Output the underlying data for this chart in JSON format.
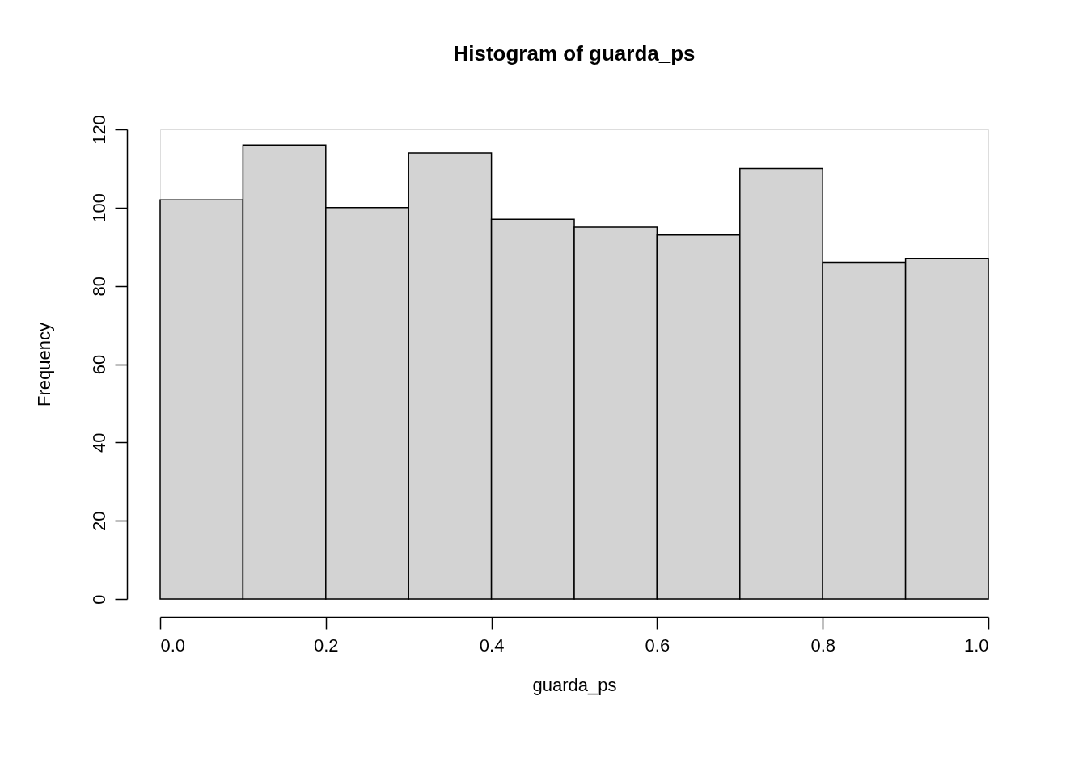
{
  "chart_data": {
    "type": "histogram",
    "title": "Histogram of guarda_ps",
    "xlabel": "guarda_ps",
    "ylabel": "Frequency",
    "bins": [
      0.0,
      0.1,
      0.2,
      0.3,
      0.4,
      0.5,
      0.6,
      0.7,
      0.8,
      0.9,
      1.0
    ],
    "values": [
      102,
      116,
      100,
      114,
      97,
      95,
      93,
      110,
      86,
      87
    ],
    "color": "#d3d3d3",
    "xlim": [
      0,
      1
    ],
    "ylim": [
      0,
      120
    ],
    "xticks": [
      {
        "value": 0,
        "label": "0.0"
      },
      0.2,
      0.4,
      0.6,
      0.8,
      {
        "value": 1,
        "label": "1.0"
      }
    ],
    "yticks": [
      0,
      20,
      40,
      60,
      80,
      100,
      120
    ]
  }
}
